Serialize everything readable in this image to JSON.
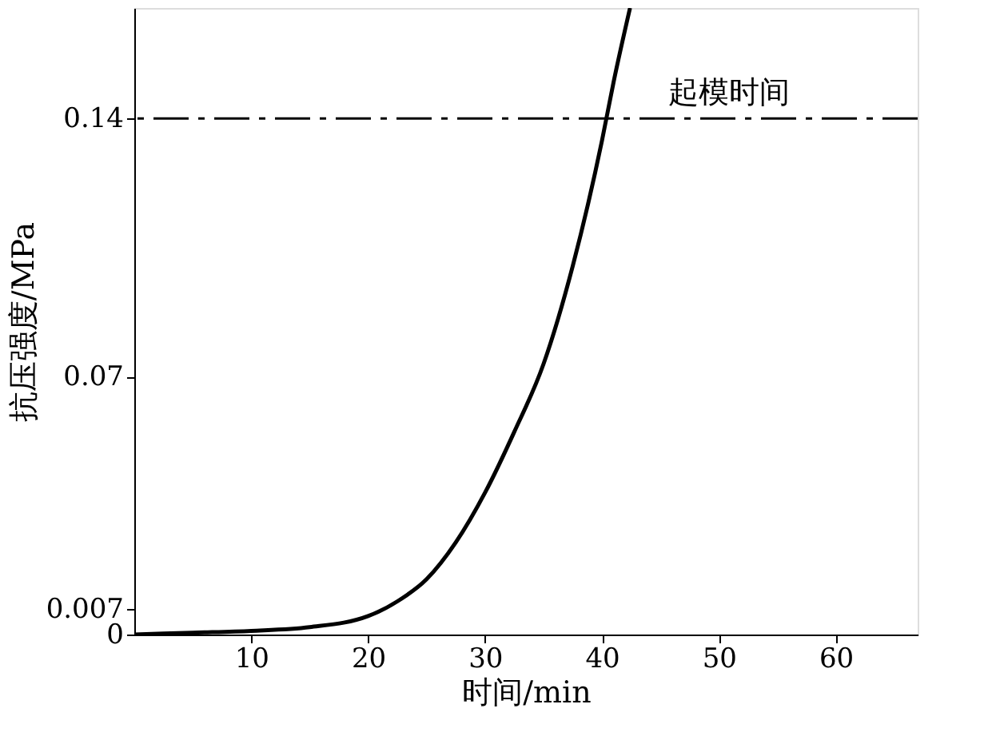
{
  "chart_data": {
    "type": "line",
    "xlabel": "时间/min",
    "ylabel": "抗压强度/MPa",
    "x": [
      0,
      5,
      10,
      15,
      20,
      22.5,
      25,
      27.5,
      30,
      32.5,
      35,
      37.5,
      40,
      41,
      42.4
    ],
    "series": [
      {
        "color": "#000000",
        "values": [
          0,
          0.0005,
          0.001,
          0.002,
          0.005,
          0.009,
          0.015,
          0.025,
          0.0385,
          0.055,
          0.0734,
          0.1,
          0.134,
          0.15,
          0.17
        ]
      }
    ],
    "xlim": [
      0,
      67
    ],
    "ylim": [
      0,
      0.17
    ],
    "xticks": [
      10,
      20,
      30,
      40,
      50,
      60
    ],
    "yticks": [
      0,
      0.007,
      0.07,
      0.14
    ],
    "ref_lines": [
      {
        "axis": "y",
        "value": 0.14,
        "label": "起模时间",
        "line_style": "dashed",
        "color": "#000000"
      }
    ],
    "grid": false,
    "marker": "none",
    "line_style": "solid"
  }
}
